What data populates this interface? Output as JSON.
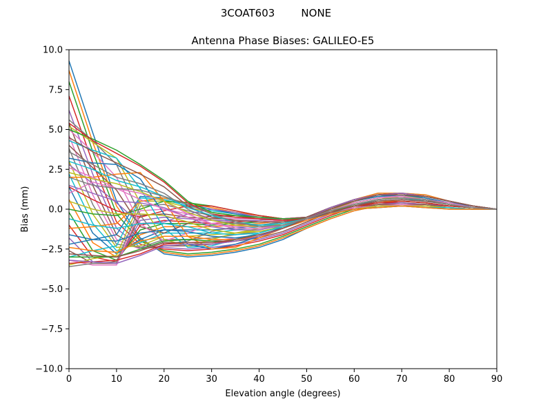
{
  "figure": {
    "suptitle": "3COAT603        NONE"
  },
  "chart_data": {
    "type": "line",
    "title": "Antenna Phase Biases: GALILEO-E5",
    "xlabel": "Elevation angle (degrees)",
    "ylabel": "Bias (mm)",
    "xlim": [
      0,
      90
    ],
    "ylim": [
      -10,
      10
    ],
    "xticks": [
      0,
      10,
      20,
      30,
      40,
      50,
      60,
      70,
      80,
      90
    ],
    "yticks": [
      -10.0,
      -7.5,
      -5.0,
      -2.5,
      0.0,
      2.5,
      5.0,
      7.5,
      10.0
    ],
    "xtick_labels": [
      "0",
      "10",
      "20",
      "30",
      "40",
      "50",
      "60",
      "70",
      "80",
      "90"
    ],
    "ytick_labels": [
      "−10.0",
      "−7.5",
      "−5.0",
      "−2.5",
      "0.0",
      "2.5",
      "5.0",
      "7.5",
      "10.0"
    ],
    "grid": false,
    "legend": "none",
    "x": [
      0,
      5,
      10,
      15,
      20,
      25,
      30,
      35,
      40,
      45,
      50,
      55,
      60,
      65,
      70,
      75,
      80,
      85,
      90
    ],
    "series_count_note": "many overlapping series (one per azimuth)",
    "series": [
      {
        "color": "#1f77b4",
        "values": [
          9.3,
          4.8,
          0.5,
          -1.8,
          -2.8,
          -3.0,
          -2.9,
          -2.7,
          -2.4,
          -1.9,
          -1.2,
          -0.6,
          -0.1,
          0.2,
          0.3,
          0.2,
          0.1,
          0.0,
          0.0
        ]
      },
      {
        "color": "#ff7f0e",
        "values": [
          8.7,
          4.2,
          0.2,
          -1.9,
          -2.7,
          -2.9,
          -2.8,
          -2.6,
          -2.3,
          -1.8,
          -1.2,
          -0.6,
          -0.1,
          0.2,
          0.3,
          0.2,
          0.1,
          0.0,
          0.0
        ]
      },
      {
        "color": "#2ca02c",
        "values": [
          8.0,
          3.6,
          -0.3,
          -2.0,
          -2.6,
          -2.8,
          -2.7,
          -2.5,
          -2.2,
          -1.7,
          -1.1,
          -0.5,
          0.0,
          0.3,
          0.4,
          0.3,
          0.2,
          0.1,
          0.0
        ]
      },
      {
        "color": "#d62728",
        "values": [
          7.1,
          2.9,
          -0.8,
          -2.2,
          -2.5,
          -2.6,
          -2.5,
          -2.3,
          -2.0,
          -1.6,
          -1.0,
          -0.4,
          0.1,
          0.4,
          0.5,
          0.4,
          0.2,
          0.1,
          0.0
        ]
      },
      {
        "color": "#9467bd",
        "values": [
          6.2,
          2.2,
          -1.2,
          -2.4,
          -2.4,
          -2.5,
          -2.4,
          -2.2,
          -1.9,
          -1.5,
          -0.9,
          -0.3,
          0.2,
          0.5,
          0.6,
          0.5,
          0.3,
          0.1,
          0.0
        ]
      },
      {
        "color": "#8c564b",
        "values": [
          5.4,
          1.5,
          -1.6,
          -2.5,
          -2.3,
          -2.3,
          -2.2,
          -2.0,
          -1.8,
          -1.4,
          -0.8,
          -0.2,
          0.3,
          0.6,
          0.7,
          0.6,
          0.3,
          0.1,
          0.0
        ]
      },
      {
        "color": "#e377c2",
        "values": [
          4.6,
          0.9,
          -1.9,
          -2.5,
          -2.1,
          -2.1,
          -2.0,
          -1.8,
          -1.6,
          -1.2,
          -0.7,
          -0.1,
          0.4,
          0.7,
          0.8,
          0.7,
          0.4,
          0.2,
          0.0
        ]
      },
      {
        "color": "#7f7f7f",
        "values": [
          3.8,
          0.3,
          -2.2,
          -2.4,
          -1.9,
          -1.9,
          -1.8,
          -1.6,
          -1.4,
          -1.1,
          -0.6,
          0.0,
          0.5,
          0.8,
          0.9,
          0.7,
          0.4,
          0.2,
          0.0
        ]
      },
      {
        "color": "#bcbd22",
        "values": [
          3.0,
          -0.3,
          -2.4,
          -2.3,
          -1.7,
          -1.7,
          -1.6,
          -1.5,
          -1.3,
          -1.0,
          -0.6,
          0.0,
          0.5,
          0.9,
          1.0,
          0.8,
          0.5,
          0.2,
          0.0
        ]
      },
      {
        "color": "#17becf",
        "values": [
          2.2,
          -0.9,
          -2.6,
          -2.1,
          -1.5,
          -1.5,
          -1.5,
          -1.3,
          -1.1,
          -0.9,
          -0.5,
          0.1,
          0.6,
          0.9,
          1.0,
          0.8,
          0.5,
          0.2,
          0.0
        ]
      },
      {
        "color": "#1f77b4",
        "values": [
          1.4,
          -1.5,
          -2.8,
          -1.9,
          -1.3,
          -1.3,
          -1.3,
          -1.2,
          -1.0,
          -0.8,
          -0.5,
          0.1,
          0.6,
          1.0,
          1.0,
          0.9,
          0.5,
          0.2,
          0.0
        ]
      },
      {
        "color": "#ff7f0e",
        "values": [
          0.6,
          -2.1,
          -3.0,
          -1.6,
          -1.1,
          -1.1,
          -1.1,
          -1.0,
          -0.9,
          -0.7,
          -0.5,
          0.1,
          0.6,
          1.0,
          1.0,
          0.9,
          0.5,
          0.2,
          0.0
        ]
      },
      {
        "color": "#2ca02c",
        "values": [
          -0.2,
          -2.6,
          -3.2,
          -1.3,
          -0.9,
          -0.9,
          -1.0,
          -0.9,
          -0.8,
          -0.7,
          -0.5,
          0.1,
          0.6,
          0.9,
          1.0,
          0.8,
          0.5,
          0.2,
          0.0
        ]
      },
      {
        "color": "#d62728",
        "values": [
          -1.0,
          -3.0,
          -3.3,
          -1.0,
          -0.7,
          -0.8,
          -0.9,
          -0.8,
          -0.7,
          -0.6,
          -0.5,
          0.1,
          0.6,
          0.9,
          1.0,
          0.8,
          0.5,
          0.2,
          0.0
        ]
      },
      {
        "color": "#9467bd",
        "values": [
          -1.8,
          -3.3,
          -3.4,
          -0.7,
          -0.5,
          -0.6,
          -0.7,
          -0.7,
          -0.7,
          -0.6,
          -0.5,
          0.1,
          0.5,
          0.9,
          0.9,
          0.8,
          0.5,
          0.2,
          0.0
        ]
      },
      {
        "color": "#8c564b",
        "values": [
          -2.6,
          -3.4,
          -3.4,
          -0.4,
          -0.3,
          -0.5,
          -0.6,
          -0.6,
          -0.6,
          -0.6,
          -0.5,
          0.1,
          0.5,
          0.8,
          0.9,
          0.7,
          0.4,
          0.2,
          0.0
        ]
      },
      {
        "color": "#e377c2",
        "values": [
          -3.2,
          -3.5,
          -3.5,
          -0.1,
          0.0,
          -0.3,
          -0.5,
          -0.6,
          -0.6,
          -0.6,
          -0.6,
          0.0,
          0.5,
          0.8,
          0.8,
          0.7,
          0.4,
          0.2,
          0.0
        ]
      },
      {
        "color": "#7f7f7f",
        "values": [
          -3.6,
          -3.4,
          -3.3,
          0.2,
          0.3,
          -0.1,
          -0.4,
          -0.5,
          -0.6,
          -0.6,
          -0.6,
          0.0,
          0.4,
          0.7,
          0.8,
          0.6,
          0.4,
          0.1,
          0.0
        ]
      },
      {
        "color": "#bcbd22",
        "values": [
          -3.5,
          -3.1,
          -2.9,
          0.5,
          0.5,
          0.1,
          -0.2,
          -0.4,
          -0.5,
          -0.6,
          -0.6,
          0.0,
          0.4,
          0.7,
          0.7,
          0.6,
          0.3,
          0.1,
          0.0
        ]
      },
      {
        "color": "#17becf",
        "values": [
          -3.0,
          -2.6,
          -2.3,
          0.7,
          0.6,
          0.2,
          -0.1,
          -0.3,
          -0.5,
          -0.6,
          -0.6,
          -0.1,
          0.3,
          0.6,
          0.7,
          0.5,
          0.3,
          0.1,
          0.0
        ]
      },
      {
        "color": "#1f77b4",
        "values": [
          -2.2,
          -1.9,
          -1.6,
          0.8,
          0.7,
          0.3,
          0.0,
          -0.3,
          -0.5,
          -0.6,
          -0.6,
          -0.1,
          0.3,
          0.5,
          0.6,
          0.5,
          0.3,
          0.1,
          0.0
        ]
      },
      {
        "color": "#ff7f0e",
        "values": [
          -1.2,
          -1.1,
          -0.9,
          0.5,
          0.7,
          0.4,
          0.1,
          -0.2,
          -0.4,
          -0.6,
          -0.6,
          -0.1,
          0.2,
          0.5,
          0.5,
          0.4,
          0.2,
          0.1,
          0.0
        ]
      },
      {
        "color": "#2ca02c",
        "values": [
          0.0,
          -0.3,
          -0.4,
          0.0,
          0.5,
          0.4,
          0.2,
          -0.1,
          -0.4,
          -0.6,
          -0.6,
          -0.1,
          0.2,
          0.4,
          0.5,
          0.4,
          0.2,
          0.1,
          0.0
        ]
      },
      {
        "color": "#d62728",
        "values": [
          1.4,
          0.6,
          -0.1,
          -0.5,
          -0.1,
          0.2,
          0.2,
          -0.1,
          -0.4,
          -0.6,
          -0.6,
          -0.2,
          0.2,
          0.4,
          0.4,
          0.3,
          0.2,
          0.1,
          0.0
        ]
      },
      {
        "color": "#9467bd",
        "values": [
          2.8,
          1.6,
          0.4,
          -0.9,
          -0.8,
          -0.3,
          0.0,
          -0.2,
          -0.5,
          -0.6,
          -0.6,
          -0.2,
          0.1,
          0.3,
          0.4,
          0.3,
          0.2,
          0.1,
          0.0
        ]
      },
      {
        "color": "#8c564b",
        "values": [
          4.0,
          2.6,
          1.2,
          -1.1,
          -1.5,
          -0.9,
          -0.4,
          -0.4,
          -0.6,
          -0.7,
          -0.6,
          -0.2,
          0.1,
          0.3,
          0.3,
          0.3,
          0.1,
          0.0,
          0.0
        ]
      },
      {
        "color": "#e377c2",
        "values": [
          5.0,
          3.6,
          2.0,
          -0.9,
          -2.0,
          -1.5,
          -0.9,
          -0.7,
          -0.8,
          -0.7,
          -0.6,
          -0.2,
          0.1,
          0.2,
          0.3,
          0.2,
          0.1,
          0.0,
          0.0
        ]
      },
      {
        "color": "#7f7f7f",
        "values": [
          5.6,
          4.3,
          2.8,
          -0.4,
          -2.2,
          -2.0,
          -1.4,
          -1.1,
          -1.0,
          -0.8,
          -0.6,
          -0.2,
          0.0,
          0.2,
          0.2,
          0.2,
          0.1,
          0.0,
          0.0
        ]
      },
      {
        "color": "#bcbd22",
        "values": [
          5.2,
          4.2,
          3.2,
          0.4,
          -1.9,
          -2.3,
          -1.9,
          -1.5,
          -1.2,
          -0.9,
          -0.6,
          -0.3,
          0.0,
          0.2,
          0.2,
          0.2,
          0.1,
          0.0,
          0.0
        ]
      },
      {
        "color": "#17becf",
        "values": [
          4.3,
          3.7,
          3.2,
          1.3,
          -1.2,
          -2.4,
          -2.3,
          -1.9,
          -1.5,
          -1.0,
          -0.6,
          -0.3,
          0.0,
          0.1,
          0.2,
          0.1,
          0.1,
          0.0,
          0.0
        ]
      },
      {
        "color": "#1f77b4",
        "values": [
          3.2,
          2.9,
          2.8,
          1.9,
          -0.3,
          -2.2,
          -2.5,
          -2.2,
          -1.7,
          -1.1,
          -0.6,
          -0.3,
          0.0,
          0.1,
          0.2,
          0.1,
          0.0,
          0.0,
          0.0
        ]
      },
      {
        "color": "#ff7f0e",
        "values": [
          2.0,
          2.0,
          2.2,
          2.3,
          0.5,
          -1.7,
          -2.5,
          -2.4,
          -1.8,
          -1.2,
          -0.7,
          -0.3,
          0.0,
          0.1,
          0.2,
          0.1,
          0.0,
          0.0,
          0.0
        ]
      },
      {
        "color": "#2ca02c",
        "values": [
          5.0,
          4.4,
          3.7,
          2.8,
          1.8,
          0.5,
          -0.2,
          -0.4,
          -0.5,
          -0.6,
          -0.6,
          -0.2,
          0.2,
          0.4,
          0.5,
          0.4,
          0.2,
          0.1,
          0.0
        ]
      },
      {
        "color": "#d62728",
        "values": [
          5.4,
          4.3,
          3.5,
          2.7,
          1.7,
          0.4,
          -0.3,
          -0.5,
          -0.6,
          -0.7,
          -0.6,
          -0.2,
          0.2,
          0.4,
          0.5,
          0.4,
          0.2,
          0.1,
          0.0
        ]
      },
      {
        "color": "#8c564b",
        "values": [
          4.5,
          3.6,
          2.9,
          2.2,
          1.4,
          0.2,
          -0.5,
          -0.7,
          -0.8,
          -0.8,
          -0.6,
          -0.2,
          0.2,
          0.5,
          0.6,
          0.5,
          0.3,
          0.1,
          0.0
        ]
      },
      {
        "color": "#7f7f7f",
        "values": [
          3.6,
          2.8,
          2.0,
          1.6,
          1.0,
          0.0,
          -0.7,
          -0.9,
          -1.0,
          -0.9,
          -0.6,
          -0.1,
          0.3,
          0.6,
          0.7,
          0.6,
          0.3,
          0.1,
          0.0
        ]
      },
      {
        "color": "#e377c2",
        "values": [
          2.6,
          2.0,
          1.3,
          1.0,
          0.5,
          -0.3,
          -0.9,
          -1.1,
          -1.1,
          -1.0,
          -0.6,
          -0.1,
          0.3,
          0.6,
          0.7,
          0.6,
          0.3,
          0.1,
          0.0
        ]
      },
      {
        "color": "#9467bd",
        "values": [
          1.5,
          1.0,
          0.5,
          0.4,
          0.1,
          -0.5,
          -1.1,
          -1.3,
          -1.3,
          -1.0,
          -0.6,
          -0.1,
          0.4,
          0.7,
          0.8,
          0.6,
          0.4,
          0.1,
          0.0
        ]
      },
      {
        "color": "#bcbd22",
        "values": [
          0.5,
          0.0,
          -0.3,
          -0.3,
          -0.4,
          -0.8,
          -1.3,
          -1.5,
          -1.4,
          -1.1,
          -0.6,
          0.0,
          0.4,
          0.7,
          0.8,
          0.7,
          0.4,
          0.2,
          0.0
        ]
      },
      {
        "color": "#17becf",
        "values": [
          -0.6,
          -1.0,
          -1.2,
          -0.9,
          -0.9,
          -1.1,
          -1.5,
          -1.6,
          -1.5,
          -1.1,
          -0.6,
          0.0,
          0.5,
          0.8,
          0.9,
          0.7,
          0.4,
          0.2,
          0.0
        ]
      },
      {
        "color": "#1f77b4",
        "values": [
          -1.6,
          -1.9,
          -2.0,
          -1.5,
          -1.3,
          -1.4,
          -1.7,
          -1.8,
          -1.6,
          -1.2,
          -0.6,
          0.0,
          0.5,
          0.8,
          0.9,
          0.7,
          0.4,
          0.2,
          0.0
        ]
      },
      {
        "color": "#ff7f0e",
        "values": [
          -2.4,
          -2.6,
          -2.7,
          -2.0,
          -1.7,
          -1.7,
          -1.9,
          -1.9,
          -1.7,
          -1.2,
          -0.6,
          0.0,
          0.5,
          0.9,
          1.0,
          0.8,
          0.5,
          0.2,
          0.0
        ]
      },
      {
        "color": "#2ca02c",
        "values": [
          -3.0,
          -3.0,
          -3.0,
          -2.5,
          -2.0,
          -1.9,
          -2.0,
          -2.0,
          -1.7,
          -1.2,
          -0.6,
          0.1,
          0.6,
          0.9,
          1.0,
          0.8,
          0.5,
          0.2,
          0.0
        ]
      },
      {
        "color": "#d62728",
        "values": [
          -3.4,
          -3.3,
          -3.2,
          -2.8,
          -2.2,
          -2.1,
          -2.1,
          -2.0,
          -1.7,
          -1.2,
          -0.6,
          0.1,
          0.6,
          0.9,
          1.0,
          0.8,
          0.5,
          0.2,
          0.0
        ]
      },
      {
        "color": "#9467bd",
        "values": [
          -3.2,
          -3.3,
          -3.4,
          -2.9,
          -2.3,
          -2.2,
          -2.2,
          -2.0,
          -1.7,
          -1.2,
          -0.6,
          0.1,
          0.6,
          0.9,
          1.0,
          0.8,
          0.5,
          0.2,
          0.0
        ]
      },
      {
        "color": "#8c564b",
        "values": [
          -2.8,
          -2.9,
          -3.0,
          -2.6,
          -2.1,
          -2.1,
          -2.1,
          -1.9,
          -1.6,
          -1.2,
          -0.6,
          0.0,
          0.5,
          0.9,
          0.9,
          0.8,
          0.5,
          0.2,
          0.0
        ]
      },
      {
        "color": "#17becf",
        "values": [
          3.0,
          2.5,
          1.8,
          1.4,
          0.8,
          0.1,
          -0.4,
          -0.8,
          -1.0,
          -0.9,
          -0.6,
          -0.1,
          0.3,
          0.6,
          0.7,
          0.6,
          0.3,
          0.1,
          0.0
        ]
      },
      {
        "color": "#bcbd22",
        "values": [
          2.3,
          1.9,
          1.6,
          1.1,
          0.5,
          -0.2,
          -0.7,
          -1.0,
          -1.1,
          -1.0,
          -0.6,
          -0.1,
          0.3,
          0.6,
          0.7,
          0.6,
          0.3,
          0.1,
          0.0
        ]
      },
      {
        "color": "#e377c2",
        "values": [
          1.0,
          1.7,
          1.3,
          0.6,
          0.0,
          -0.5,
          -0.9,
          -1.2,
          -1.2,
          -1.0,
          -0.6,
          -0.1,
          0.4,
          0.7,
          0.8,
          0.6,
          0.4,
          0.1,
          0.0
        ]
      },
      {
        "color": "#7f7f7f",
        "values": [
          2.0,
          1.5,
          1.3,
          1.2,
          0.8,
          0.3,
          -0.3,
          -0.8,
          -1.1,
          -1.0,
          -0.6,
          -0.1,
          0.3,
          0.6,
          0.7,
          0.6,
          0.3,
          0.1,
          0.0
        ]
      }
    ]
  }
}
